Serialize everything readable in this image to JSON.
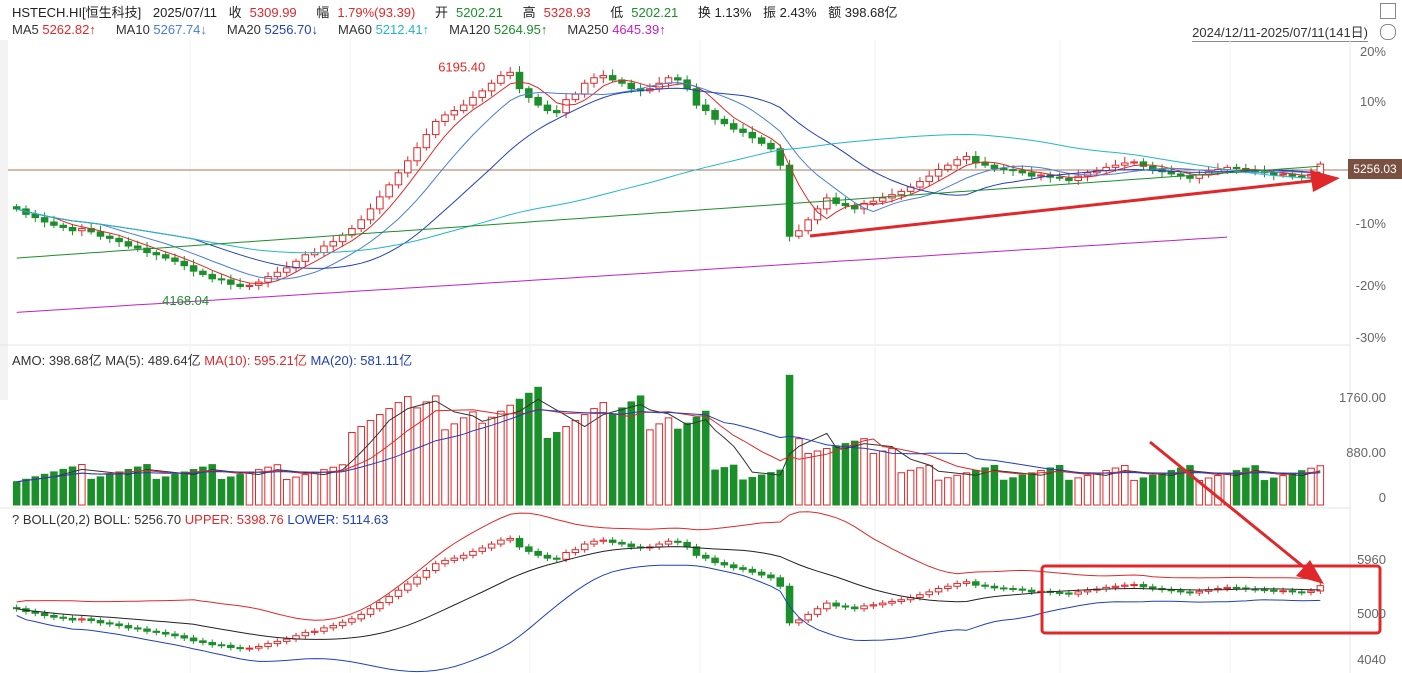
{
  "header": {
    "symbol": "HSTECH.HI[恒生科技]",
    "date": "2025/07/11",
    "close_label": "收",
    "close": "5309.99",
    "change_label": "幅",
    "change": "1.79%(93.39)",
    "open_label": "开",
    "open": "5202.21",
    "high_label": "高",
    "high": "5328.93",
    "low_label": "低",
    "low": "5202.21",
    "turnover": "换 1.13%",
    "amplitude": "振 2.43%",
    "amount": "额 398.68亿"
  },
  "ma_legend": [
    {
      "name": "MA5",
      "value": "5262.82↑",
      "color": "#e0282a"
    },
    {
      "name": "MA10",
      "value": "5267.74↓",
      "color": "#4a7fd6"
    },
    {
      "name": "MA20",
      "value": "5256.70↓",
      "color": "#1f3fbf"
    },
    {
      "name": "MA60",
      "value": "5212.41↑",
      "color": "#22b7c8"
    },
    {
      "name": "MA120",
      "value": "5264.95↑",
      "color": "#1a8f2a"
    },
    {
      "name": "MA250",
      "value": "4645.39↑",
      "color": "#c020c8"
    }
  ],
  "date_range": "2024/12/11-2025/07/11(141日)",
  "price_axis": [
    "20%",
    "10%",
    "-10%",
    "-20%",
    "-30%"
  ],
  "current_price_tag": "5256.03",
  "annotations": {
    "high": "6195.40",
    "low": "4168.04"
  },
  "amount_legend": {
    "amo": "AMO: 398.68亿",
    "ma5": "MA(5): 489.64亿",
    "ma10": "MA(10): 595.21亿",
    "ma20": "MA(20): 581.11亿"
  },
  "amount_axis": [
    "1760.00",
    "880.00",
    "0"
  ],
  "boll_legend": {
    "help": "?",
    "name": "BOLL(20,2)",
    "boll": "BOLL: 5256.70",
    "upper": "UPPER: 5398.76",
    "lower": "LOWER: 5114.63"
  },
  "boll_axis": [
    "5960",
    "5000",
    "4040"
  ],
  "colors": {
    "up": "#e0282a",
    "down": "#1a8f2a",
    "ma5": "#e0282a",
    "ma10": "#4a7fd6",
    "ma20": "#1f3fbf",
    "ma60": "#22b7c8",
    "ma120": "#1a8f2a",
    "ma250": "#c020c8",
    "arrow": "#e0282a"
  },
  "chart_data": {
    "type": "candlestick",
    "title": "HSTECH.HI[恒生科技]",
    "period": "2024/12/11-2025/07/11",
    "bars": 141,
    "y_range": [
      3700,
      6400
    ],
    "key_prices": {
      "high": 6195.4,
      "low": 4168.04,
      "last_close": 5309.99
    },
    "close_series_approx": [
      4900,
      4850,
      4820,
      4780,
      4750,
      4730,
      4700,
      4720,
      4690,
      4650,
      4630,
      4600,
      4560,
      4540,
      4500,
      4480,
      4450,
      4420,
      4380,
      4330,
      4300,
      4260,
      4250,
      4210,
      4190,
      4200,
      4230,
      4280,
      4320,
      4360,
      4420,
      4480,
      4500,
      4560,
      4600,
      4660,
      4720,
      4800,
      4900,
      5010,
      5120,
      5230,
      5340,
      5460,
      5580,
      5700,
      5760,
      5800,
      5850,
      5920,
      5980,
      6050,
      6120,
      6150,
      6000,
      5920,
      5850,
      5800,
      5780,
      5900,
      5950,
      6050,
      6100,
      6120,
      6080,
      6050,
      6000,
      5980,
      6000,
      6050,
      6100,
      6080,
      6000,
      5850,
      5800,
      5720,
      5680,
      5630,
      5600,
      5550,
      5500,
      5450,
      5300,
      4650,
      4700,
      4800,
      4900,
      5000,
      4950,
      4930,
      4900,
      4950,
      4970,
      5000,
      5030,
      5060,
      5100,
      5150,
      5200,
      5260,
      5300,
      5350,
      5380,
      5320,
      5300,
      5270,
      5260,
      5250,
      5230,
      5200,
      5210,
      5190,
      5180,
      5160,
      5200,
      5230,
      5250,
      5280,
      5300,
      5320,
      5330,
      5290,
      5260,
      5240,
      5220,
      5200,
      5180,
      5210,
      5240,
      5260,
      5280,
      5270,
      5250,
      5240,
      5230,
      5210,
      5220,
      5200,
      5190,
      5216,
      5310
    ],
    "amount_range": [
      0,
      2000
    ],
    "amount_axis_labels": [
      1760,
      880,
      0
    ],
    "boll": {
      "boll": 5256.7,
      "upper": 5398.76,
      "lower": 5114.63
    }
  }
}
